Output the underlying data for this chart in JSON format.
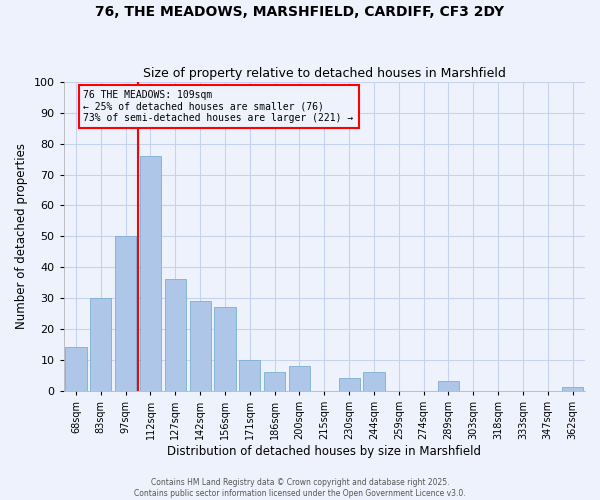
{
  "title1": "76, THE MEADOWS, MARSHFIELD, CARDIFF, CF3 2DY",
  "title2": "Size of property relative to detached houses in Marshfield",
  "xlabel": "Distribution of detached houses by size in Marshfield",
  "ylabel": "Number of detached properties",
  "bar_labels": [
    "68sqm",
    "83sqm",
    "97sqm",
    "112sqm",
    "127sqm",
    "142sqm",
    "156sqm",
    "171sqm",
    "186sqm",
    "200sqm",
    "215sqm",
    "230sqm",
    "244sqm",
    "259sqm",
    "274sqm",
    "289sqm",
    "303sqm",
    "318sqm",
    "333sqm",
    "347sqm",
    "362sqm"
  ],
  "bar_values": [
    14,
    30,
    50,
    76,
    36,
    29,
    27,
    10,
    6,
    8,
    0,
    4,
    6,
    0,
    0,
    3,
    0,
    0,
    0,
    0,
    1
  ],
  "bar_color": "#aec6e8",
  "bar_edge_color": "#7aafd4",
  "vline_color": "red",
  "vline_index": 3,
  "annotation_title": "76 THE MEADOWS: 109sqm",
  "annotation_line1": "← 25% of detached houses are smaller (76)",
  "annotation_line2": "73% of semi-detached houses are larger (221) →",
  "annotation_box_color": "red",
  "ylim": [
    0,
    100
  ],
  "yticks": [
    0,
    10,
    20,
    30,
    40,
    50,
    60,
    70,
    80,
    90,
    100
  ],
  "footer1": "Contains HM Land Registry data © Crown copyright and database right 2025.",
  "footer2": "Contains public sector information licensed under the Open Government Licence v3.0.",
  "background_color": "#eef2fc",
  "grid_color": "#c5d3ee"
}
